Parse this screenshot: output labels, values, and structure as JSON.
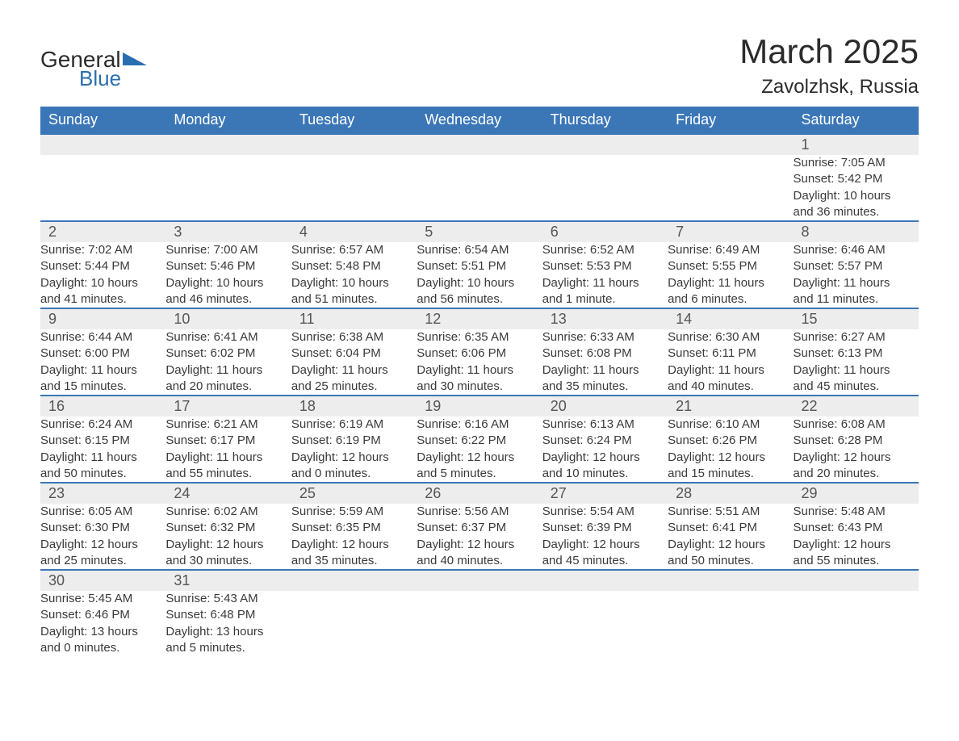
{
  "logo": {
    "word1": "General",
    "word2": "Blue",
    "accent_color": "#2a6db0"
  },
  "title": "March 2025",
  "location": "Zavolzhsk, Russia",
  "colors": {
    "header_bg": "#3b77b7",
    "header_text": "#ffffff",
    "daynum_bg": "#ededed",
    "row_border": "#3b77b7",
    "body_text": "#3a3a3a"
  },
  "days_of_week": [
    "Sunday",
    "Monday",
    "Tuesday",
    "Wednesday",
    "Thursday",
    "Friday",
    "Saturday"
  ],
  "weeks": [
    [
      null,
      null,
      null,
      null,
      null,
      null,
      {
        "n": "1",
        "sunrise": "Sunrise: 7:05 AM",
        "sunset": "Sunset: 5:42 PM",
        "day1": "Daylight: 10 hours",
        "day2": "and 36 minutes."
      }
    ],
    [
      {
        "n": "2",
        "sunrise": "Sunrise: 7:02 AM",
        "sunset": "Sunset: 5:44 PM",
        "day1": "Daylight: 10 hours",
        "day2": "and 41 minutes."
      },
      {
        "n": "3",
        "sunrise": "Sunrise: 7:00 AM",
        "sunset": "Sunset: 5:46 PM",
        "day1": "Daylight: 10 hours",
        "day2": "and 46 minutes."
      },
      {
        "n": "4",
        "sunrise": "Sunrise: 6:57 AM",
        "sunset": "Sunset: 5:48 PM",
        "day1": "Daylight: 10 hours",
        "day2": "and 51 minutes."
      },
      {
        "n": "5",
        "sunrise": "Sunrise: 6:54 AM",
        "sunset": "Sunset: 5:51 PM",
        "day1": "Daylight: 10 hours",
        "day2": "and 56 minutes."
      },
      {
        "n": "6",
        "sunrise": "Sunrise: 6:52 AM",
        "sunset": "Sunset: 5:53 PM",
        "day1": "Daylight: 11 hours",
        "day2": "and 1 minute."
      },
      {
        "n": "7",
        "sunrise": "Sunrise: 6:49 AM",
        "sunset": "Sunset: 5:55 PM",
        "day1": "Daylight: 11 hours",
        "day2": "and 6 minutes."
      },
      {
        "n": "8",
        "sunrise": "Sunrise: 6:46 AM",
        "sunset": "Sunset: 5:57 PM",
        "day1": "Daylight: 11 hours",
        "day2": "and 11 minutes."
      }
    ],
    [
      {
        "n": "9",
        "sunrise": "Sunrise: 6:44 AM",
        "sunset": "Sunset: 6:00 PM",
        "day1": "Daylight: 11 hours",
        "day2": "and 15 minutes."
      },
      {
        "n": "10",
        "sunrise": "Sunrise: 6:41 AM",
        "sunset": "Sunset: 6:02 PM",
        "day1": "Daylight: 11 hours",
        "day2": "and 20 minutes."
      },
      {
        "n": "11",
        "sunrise": "Sunrise: 6:38 AM",
        "sunset": "Sunset: 6:04 PM",
        "day1": "Daylight: 11 hours",
        "day2": "and 25 minutes."
      },
      {
        "n": "12",
        "sunrise": "Sunrise: 6:35 AM",
        "sunset": "Sunset: 6:06 PM",
        "day1": "Daylight: 11 hours",
        "day2": "and 30 minutes."
      },
      {
        "n": "13",
        "sunrise": "Sunrise: 6:33 AM",
        "sunset": "Sunset: 6:08 PM",
        "day1": "Daylight: 11 hours",
        "day2": "and 35 minutes."
      },
      {
        "n": "14",
        "sunrise": "Sunrise: 6:30 AM",
        "sunset": "Sunset: 6:11 PM",
        "day1": "Daylight: 11 hours",
        "day2": "and 40 minutes."
      },
      {
        "n": "15",
        "sunrise": "Sunrise: 6:27 AM",
        "sunset": "Sunset: 6:13 PM",
        "day1": "Daylight: 11 hours",
        "day2": "and 45 minutes."
      }
    ],
    [
      {
        "n": "16",
        "sunrise": "Sunrise: 6:24 AM",
        "sunset": "Sunset: 6:15 PM",
        "day1": "Daylight: 11 hours",
        "day2": "and 50 minutes."
      },
      {
        "n": "17",
        "sunrise": "Sunrise: 6:21 AM",
        "sunset": "Sunset: 6:17 PM",
        "day1": "Daylight: 11 hours",
        "day2": "and 55 minutes."
      },
      {
        "n": "18",
        "sunrise": "Sunrise: 6:19 AM",
        "sunset": "Sunset: 6:19 PM",
        "day1": "Daylight: 12 hours",
        "day2": "and 0 minutes."
      },
      {
        "n": "19",
        "sunrise": "Sunrise: 6:16 AM",
        "sunset": "Sunset: 6:22 PM",
        "day1": "Daylight: 12 hours",
        "day2": "and 5 minutes."
      },
      {
        "n": "20",
        "sunrise": "Sunrise: 6:13 AM",
        "sunset": "Sunset: 6:24 PM",
        "day1": "Daylight: 12 hours",
        "day2": "and 10 minutes."
      },
      {
        "n": "21",
        "sunrise": "Sunrise: 6:10 AM",
        "sunset": "Sunset: 6:26 PM",
        "day1": "Daylight: 12 hours",
        "day2": "and 15 minutes."
      },
      {
        "n": "22",
        "sunrise": "Sunrise: 6:08 AM",
        "sunset": "Sunset: 6:28 PM",
        "day1": "Daylight: 12 hours",
        "day2": "and 20 minutes."
      }
    ],
    [
      {
        "n": "23",
        "sunrise": "Sunrise: 6:05 AM",
        "sunset": "Sunset: 6:30 PM",
        "day1": "Daylight: 12 hours",
        "day2": "and 25 minutes."
      },
      {
        "n": "24",
        "sunrise": "Sunrise: 6:02 AM",
        "sunset": "Sunset: 6:32 PM",
        "day1": "Daylight: 12 hours",
        "day2": "and 30 minutes."
      },
      {
        "n": "25",
        "sunrise": "Sunrise: 5:59 AM",
        "sunset": "Sunset: 6:35 PM",
        "day1": "Daylight: 12 hours",
        "day2": "and 35 minutes."
      },
      {
        "n": "26",
        "sunrise": "Sunrise: 5:56 AM",
        "sunset": "Sunset: 6:37 PM",
        "day1": "Daylight: 12 hours",
        "day2": "and 40 minutes."
      },
      {
        "n": "27",
        "sunrise": "Sunrise: 5:54 AM",
        "sunset": "Sunset: 6:39 PM",
        "day1": "Daylight: 12 hours",
        "day2": "and 45 minutes."
      },
      {
        "n": "28",
        "sunrise": "Sunrise: 5:51 AM",
        "sunset": "Sunset: 6:41 PM",
        "day1": "Daylight: 12 hours",
        "day2": "and 50 minutes."
      },
      {
        "n": "29",
        "sunrise": "Sunrise: 5:48 AM",
        "sunset": "Sunset: 6:43 PM",
        "day1": "Daylight: 12 hours",
        "day2": "and 55 minutes."
      }
    ],
    [
      {
        "n": "30",
        "sunrise": "Sunrise: 5:45 AM",
        "sunset": "Sunset: 6:46 PM",
        "day1": "Daylight: 13 hours",
        "day2": "and 0 minutes."
      },
      {
        "n": "31",
        "sunrise": "Sunrise: 5:43 AM",
        "sunset": "Sunset: 6:48 PM",
        "day1": "Daylight: 13 hours",
        "day2": "and 5 minutes."
      },
      null,
      null,
      null,
      null,
      null
    ]
  ]
}
